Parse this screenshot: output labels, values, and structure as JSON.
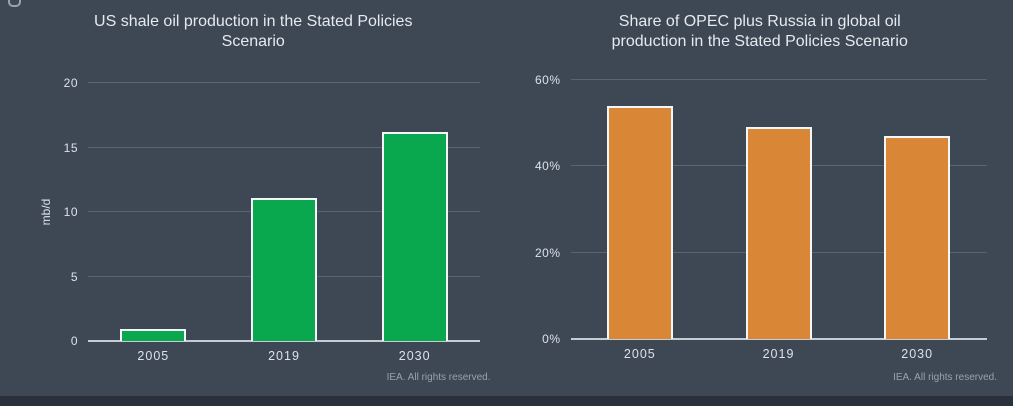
{
  "page": {
    "background_color": "#3e4754",
    "footer_bar_color": "#2a313b",
    "text_color": "#e6eaef",
    "footer_note": "IEA. All rights reserved."
  },
  "chart_data": [
    {
      "type": "bar",
      "title": "US shale oil production in the Stated Policies Scenario",
      "title_lines": [
        "US shale oil production in the Stated Policies",
        "Scenario"
      ],
      "ylabel": "mb/d",
      "xlabel": "",
      "categories": [
        "2005",
        "2019",
        "2030"
      ],
      "values": [
        0.9,
        11.1,
        16.2
      ],
      "ylim": [
        0,
        20
      ],
      "ymax": 20,
      "yticks": [
        0,
        5,
        10,
        15,
        20
      ],
      "ytick_labels": [
        "0",
        "5",
        "10",
        "15",
        "20"
      ],
      "grid": "horizontal",
      "legend": "none",
      "bar_color": "#0aa84e",
      "bar_border_color": "#f4f6f8",
      "source_note": "IEA. All rights reserved."
    },
    {
      "type": "bar",
      "title": "Share of OPEC plus Russia in global oil production in the Stated Policies Scenario",
      "title_lines": [
        "Share of OPEC plus Russia in global oil",
        "production in the Stated Policies Scenario"
      ],
      "ylabel": "",
      "xlabel": "",
      "categories": [
        "2005",
        "2019",
        "2030"
      ],
      "values": [
        54,
        49,
        47
      ],
      "ylim": [
        0,
        60
      ],
      "ymax": 60,
      "yticks": [
        0,
        20,
        40,
        60
      ],
      "ytick_labels": [
        "0%",
        "20%",
        "40%",
        "60%"
      ],
      "grid": "horizontal",
      "legend": "none",
      "bar_color": "#d98737",
      "bar_border_color": "#f4f6f8",
      "source_note": "IEA. All rights reserved."
    }
  ]
}
